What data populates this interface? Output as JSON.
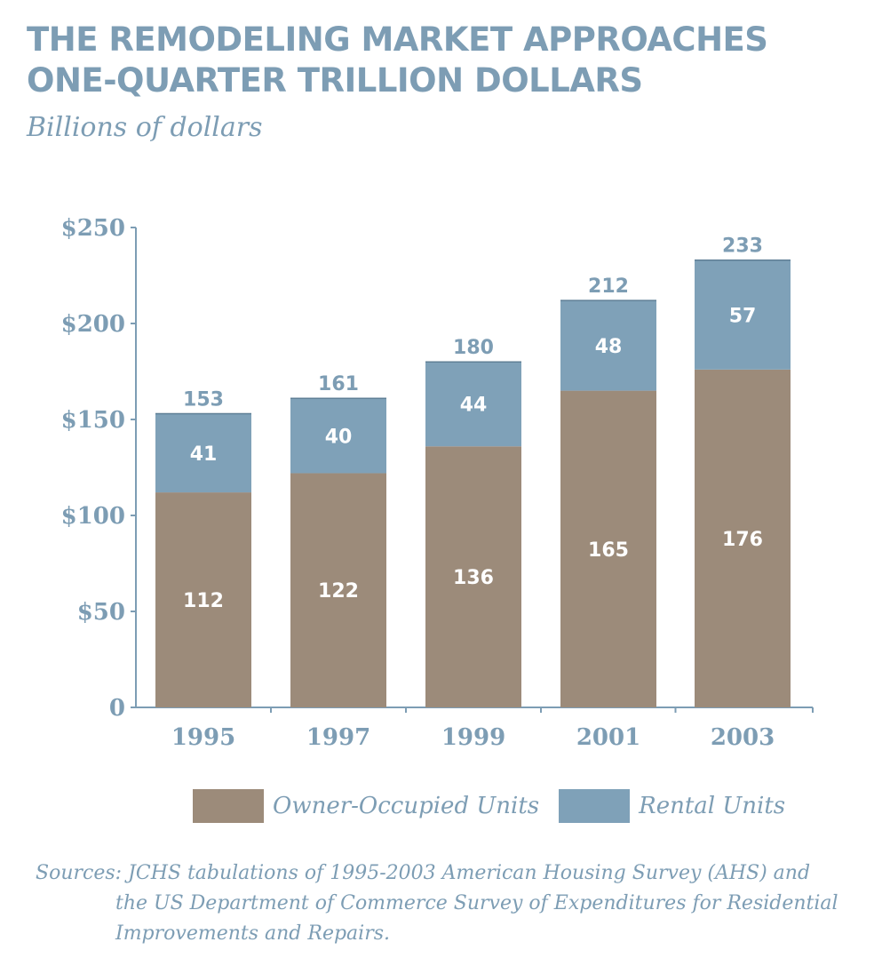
{
  "header": {
    "title_line1": "THE REMODELING MARKET APPROACHES",
    "title_line2": "ONE-QUARTER TRILLION DOLLARS",
    "subtitle": "Billions of dollars"
  },
  "chart_data": {
    "type": "bar",
    "stacked": true,
    "categories": [
      "1995",
      "1997",
      "1999",
      "2001",
      "2003"
    ],
    "series": [
      {
        "name": "Owner-Occupied Units",
        "values": [
          112,
          122,
          136,
          165,
          176
        ],
        "color": "#9c8b7a"
      },
      {
        "name": "Rental Units",
        "values": [
          41,
          40,
          44,
          48,
          57
        ],
        "color": "#7fa1b8"
      }
    ],
    "totals": [
      153,
      161,
      180,
      212,
      233
    ],
    "y_ticks": [
      {
        "value": 0,
        "label": "0"
      },
      {
        "value": 50,
        "label": "$50"
      },
      {
        "value": 100,
        "label": "$100"
      },
      {
        "value": 150,
        "label": "$150"
      },
      {
        "value": 200,
        "label": "$200"
      },
      {
        "value": 250,
        "label": "$250"
      }
    ],
    "ylim": [
      0,
      250
    ],
    "title": "THE REMODELING MARKET APPROACHES ONE-QUARTER TRILLION DOLLARS",
    "ylabel": "Billions of dollars",
    "xlabel": "",
    "grid": false,
    "legend_position": "bottom"
  },
  "legend": {
    "owner_label": "Owner-Occupied Units",
    "rental_label": "Rental Units"
  },
  "source": {
    "line1": "Sources: JCHS tabulations of 1995-2003 American Housing Survey (AHS) and",
    "line2": "the US Department of Commerce Survey of Expenditures for Residential",
    "line3": "Improvements and Repairs."
  }
}
